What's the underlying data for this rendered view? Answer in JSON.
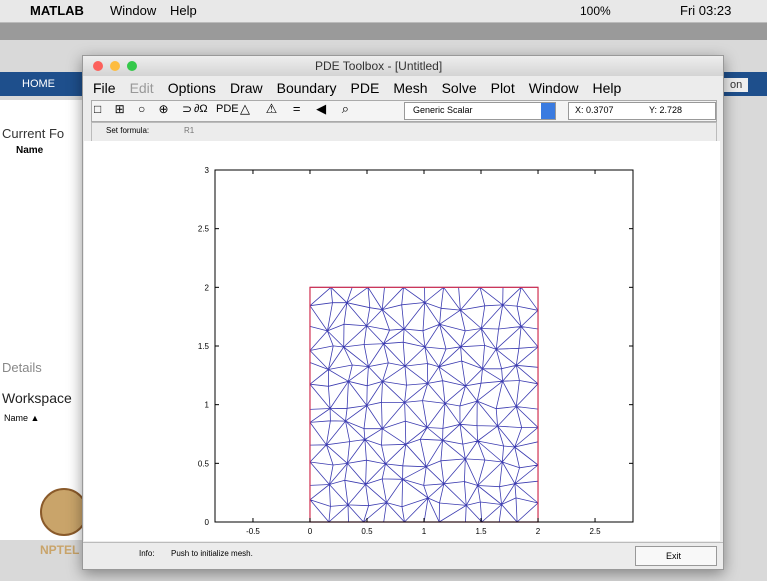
{
  "mac_menubar": {
    "app": "MATLAB",
    "items": [
      "Window",
      "Help"
    ],
    "battery": "100%",
    "clock": "Fri 03:23"
  },
  "matlab_background": {
    "home_tab": "HOME",
    "current_folder": "Current Fo",
    "name_header": "Name",
    "details": "Details",
    "workspace": "Workspace",
    "workspace_name": "Name ▲",
    "right_button": "on",
    "logo": "NPTEL"
  },
  "window": {
    "title": "PDE Toolbox - [Untitled]",
    "menu": [
      "File",
      "Edit",
      "Options",
      "Draw",
      "Boundary",
      "PDE",
      "Mesh",
      "Solve",
      "Plot",
      "Window",
      "Help"
    ],
    "toolbar": {
      "boundary_button": "∂Ω",
      "pde_button": "PDE",
      "application": "Generic Scalar",
      "x_readout": "X: 0.3707",
      "y_readout": "Y: 2.728"
    },
    "formula": {
      "label": "Set formula:",
      "value": "R1"
    },
    "status": {
      "label": "Info:",
      "message": "Push to initialize mesh.",
      "exit": "Exit"
    }
  },
  "plot": {
    "xlim": [
      -0.833,
      2.833
    ],
    "ylim": [
      0,
      3
    ],
    "xticks": [
      -0.5,
      0,
      0.5,
      1,
      1.5,
      2,
      2.5
    ],
    "yticks": [
      0,
      0.5,
      1,
      1.5,
      2,
      2.5,
      3
    ]
  }
}
